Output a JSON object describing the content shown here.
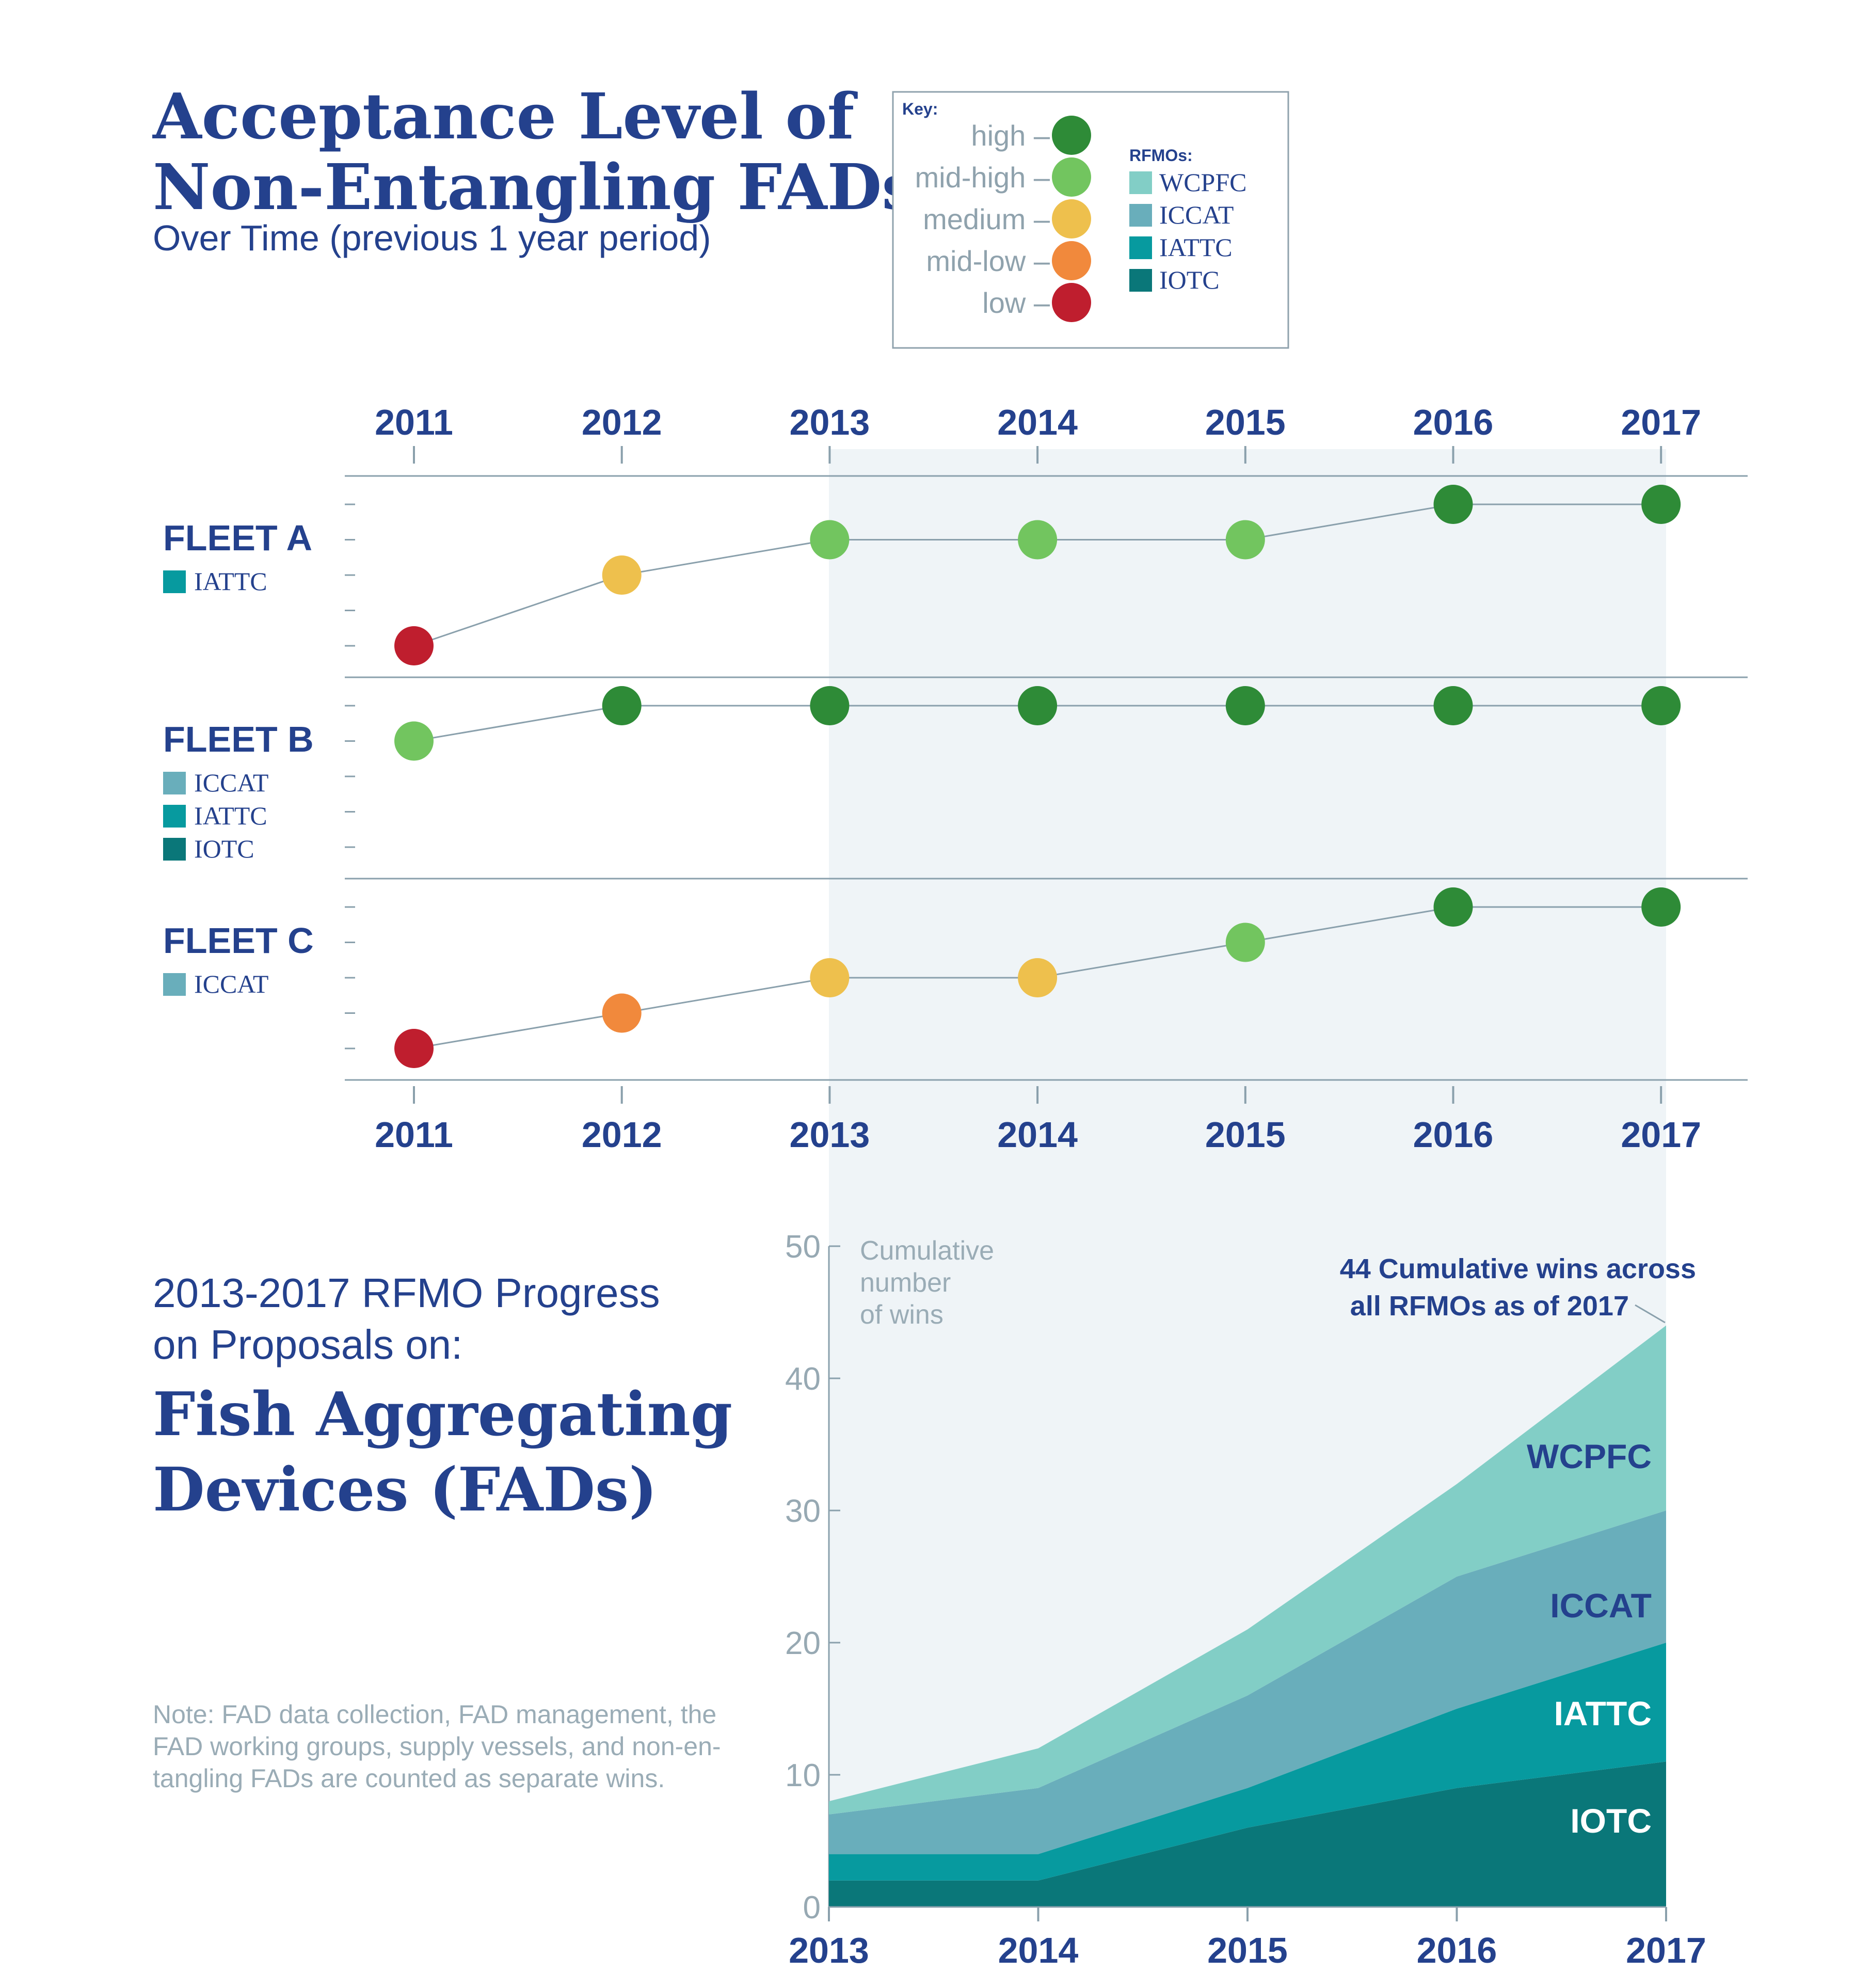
{
  "header": {
    "title_line1": "Acceptance Level of",
    "title_line2": "Non-Entangling FADs",
    "subtitle": "Over Time (previous 1 year period)"
  },
  "key": {
    "title": "Key:",
    "levels": [
      {
        "label": "high –",
        "color": "#2e8b37"
      },
      {
        "label": "mid-high –",
        "color": "#72c55f"
      },
      {
        "label": "medium –",
        "color": "#eec04d"
      },
      {
        "label": "mid-low –",
        "color": "#f1893c"
      },
      {
        "label": "low –",
        "color": "#bf1e2e"
      }
    ],
    "rfmo_title": "RFMOs:",
    "rfmos": [
      {
        "label": "WCPFC",
        "color": "#82cec6"
      },
      {
        "label": "ICCAT",
        "color": "#69aebb"
      },
      {
        "label": "IATTC",
        "color": "#079a9f"
      },
      {
        "label": "IOTC",
        "color": "#0a7779"
      }
    ]
  },
  "level_colors": [
    "#bf1e2e",
    "#f1893c",
    "#eec04d",
    "#72c55f",
    "#2e8b37"
  ],
  "rfmo_colors": {
    "WCPFC": "#82cec6",
    "ICCAT": "#69aebb",
    "IATTC": "#079a9f",
    "IOTC": "#0a7779"
  },
  "years": [
    "2011",
    "2012",
    "2013",
    "2014",
    "2015",
    "2016",
    "2017"
  ],
  "chart_data": [
    {
      "type": "scatter",
      "title": "Acceptance Level of Non-Entangling FADs",
      "subtitle": "Over Time (previous 1 year period)",
      "x": [
        "2011",
        "2012",
        "2013",
        "2014",
        "2015",
        "2016",
        "2017"
      ],
      "level_scale": [
        "low",
        "mid-low",
        "medium",
        "mid-high",
        "high"
      ],
      "series": [
        {
          "name": "FLEET A",
          "rfmos": [
            "IATTC"
          ],
          "values": [
            0,
            2,
            3,
            3,
            3,
            4,
            4
          ]
        },
        {
          "name": "FLEET B",
          "rfmos": [
            "ICCAT",
            "IATTC",
            "IOTC"
          ],
          "values": [
            3,
            4,
            4,
            4,
            4,
            4,
            4
          ]
        },
        {
          "name": "FLEET C",
          "rfmos": [
            "ICCAT"
          ],
          "values": [
            0,
            1,
            2,
            2,
            3,
            4,
            4
          ]
        }
      ]
    },
    {
      "type": "area",
      "title_line1": "2013-2017 RFMO Progress",
      "title_line2": "on Proposals on:",
      "title_big1": "Fish Aggregating",
      "title_big2": "Devices (FADs)",
      "ylabel_line1": "Cumulative",
      "ylabel_line2": "number",
      "ylabel_line3": "of wins",
      "ylim": [
        0,
        50
      ],
      "yticks": [
        "0",
        "10",
        "20",
        "30",
        "40",
        "50"
      ],
      "x": [
        "2013",
        "2014",
        "2015",
        "2016",
        "2017"
      ],
      "series": [
        {
          "name": "IOTC",
          "values": [
            2,
            2,
            6,
            9,
            11
          ]
        },
        {
          "name": "IATTC",
          "values": [
            2,
            2,
            3,
            6,
            9
          ]
        },
        {
          "name": "ICCAT",
          "values": [
            3,
            5,
            7,
            10,
            10
          ]
        },
        {
          "name": "WCPFC",
          "values": [
            1,
            3,
            5,
            7,
            14
          ]
        }
      ],
      "annotation_line1": "44 Cumulative wins across",
      "annotation_line2": "all RFMOs as of 2017"
    }
  ],
  "note": {
    "line1": "Note: FAD data collection, FAD management, the",
    "line2": "FAD working groups, supply vessels, and non-en-",
    "line3": "tangling FADs are counted as separate wins."
  }
}
